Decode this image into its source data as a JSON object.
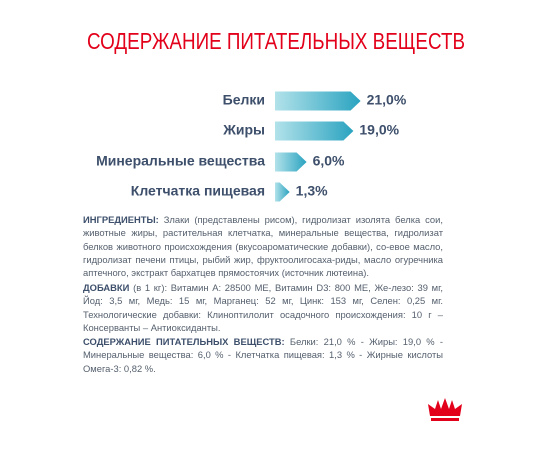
{
  "chart_data": {
    "type": "bar",
    "orientation": "horizontal",
    "title": "СОДЕРЖАНИЕ ПИТАТЕЛЬНЫХ ВЕЩЕСТВ",
    "categories": [
      "Белки",
      "Жиры",
      "Минеральные вещества",
      "Клетчатка пищевая"
    ],
    "values": [
      21.0,
      19.0,
      6.0,
      1.3
    ],
    "value_labels": [
      "21,0%",
      "19,0%",
      "6,0%",
      "1,3%"
    ],
    "color": "#2aa3c0"
  },
  "text_blocks": [
    {
      "heading": "ИНГРЕДИЕНТЫ:",
      "text": " Злаки (представлены рисом), гидролизат изолята белка сои, животные жиры, растительная клетчатка, минеральные вещества, гидролизат белков животного происхождения (вкусоароматические добавки), со-евое масло, гидролизат печени птицы, рыбий жир, фруктоолигосаха-риды, масло огуречника аптечного, экстракт бархатцев прямостоячих (источник лютеина)."
    },
    {
      "heading": "ДОБАВКИ",
      "text": " (в 1 кг): Витамин А: 28500 МЕ, Витамин D3: 800 МЕ, Же-лезо: 39 мг, Йод: 3,5 мг, Медь: 15 мг, Марганец: 52 мг, Цинк: 153  мг, Селен: 0,25 мг. Технологические добавки: Клиноптилолит осадочного происхождения: 10 г – Консерванты – Антиоксиданты."
    },
    {
      "heading": "СОДЕРЖАНИЕ ПИТАТЕЛЬНЫХ ВЕЩЕСТВ:",
      "text": " Белки: 21,0 % - Жиры: 19,0 % - Минеральные вещества: 6,0 %  - Клетчатка пищевая: 1,3 % - Жирные кислоты Омега-3: 0,82 %."
    }
  ]
}
